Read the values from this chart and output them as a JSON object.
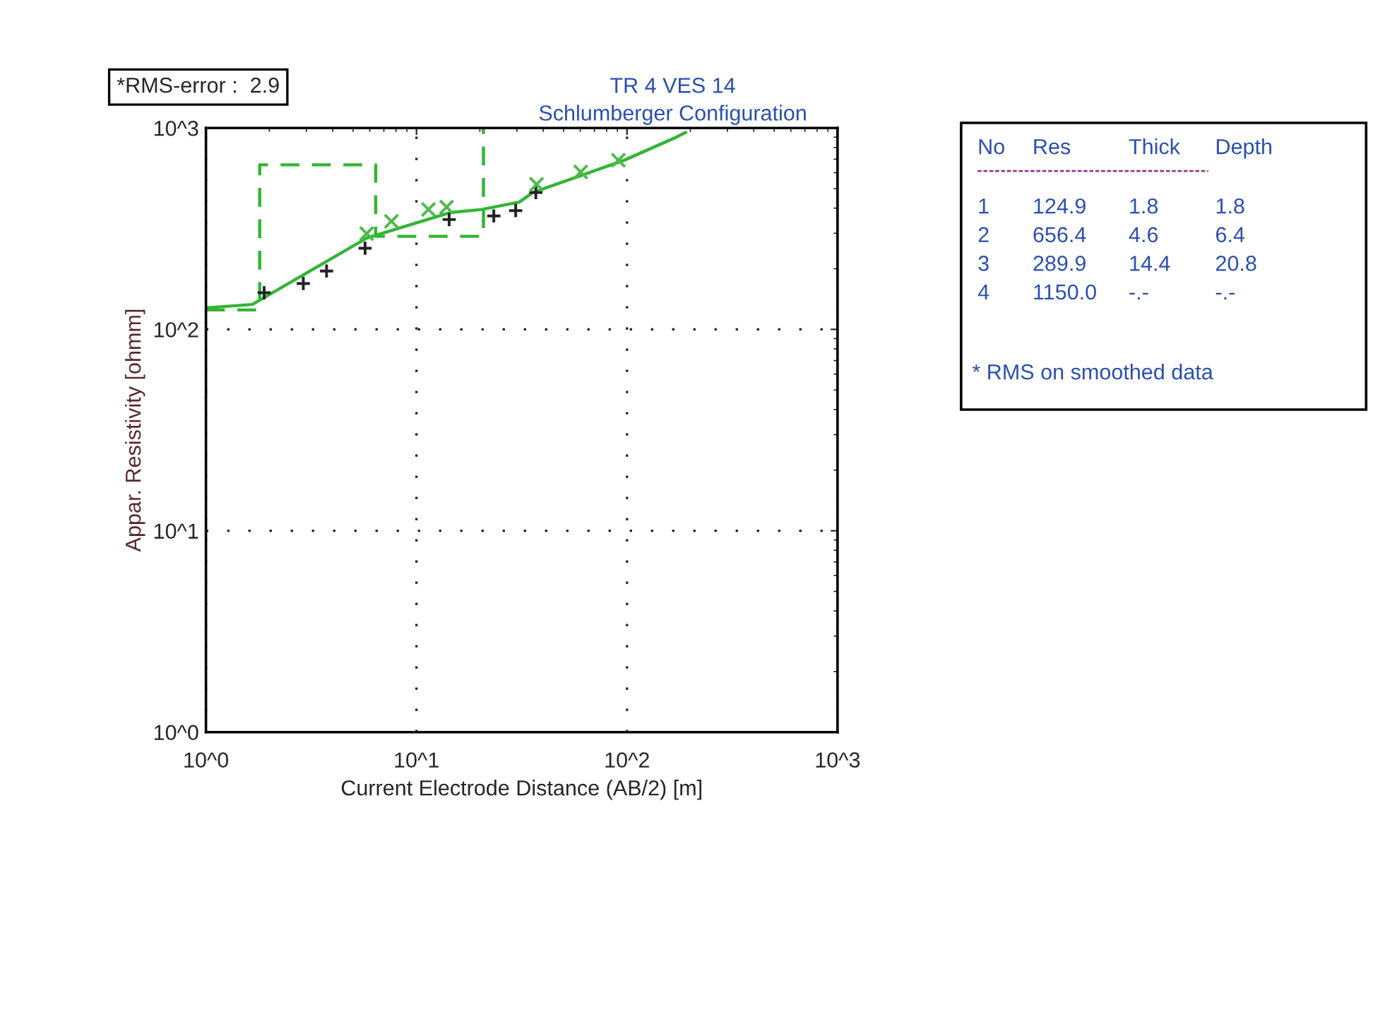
{
  "chart_data": {
    "type": "line",
    "title": "TR 4 VES 14",
    "subtitle": "Schlumberger Configuration",
    "xlabel": "Current Electrode Distance (AB/2) [m]",
    "ylabel": "Appar. Resistivity [ohmm]",
    "log": "xy",
    "xlim": [
      1,
      1000
    ],
    "ylim": [
      1,
      1000
    ],
    "xticks": [
      {
        "value": 1,
        "label": "10^0"
      },
      {
        "value": 10,
        "label": "10^1"
      },
      {
        "value": 100,
        "label": "10^2"
      },
      {
        "value": 1000,
        "label": "10^3"
      }
    ],
    "yticks": [
      {
        "value": 1,
        "label": "10^0"
      },
      {
        "value": 10,
        "label": "10^1"
      },
      {
        "value": 100,
        "label": "10^2"
      },
      {
        "value": 1000,
        "label": "10^3"
      }
    ],
    "grid": true,
    "series": [
      {
        "color": "#33b533",
        "line_style": "solid",
        "marker": "none",
        "x": [
          1,
          1.66,
          5.8,
          14.4,
          20.4,
          30.8,
          35.7,
          97,
          169,
          190
        ],
        "values": [
          128,
          133,
          284,
          380,
          394,
          429,
          478,
          692,
          894,
          950
        ]
      },
      {
        "type": "step",
        "color": "#33b533",
        "line_style": "dashed",
        "marker": "none",
        "x": [
          1,
          1.8,
          1.8,
          6.4,
          6.4,
          20.8,
          20.8
        ],
        "values": [
          124.9,
          124.9,
          656.4,
          656.4,
          289.9,
          289.9,
          1000
        ]
      },
      {
        "type": "scatter",
        "color": "#222222",
        "marker": "plus",
        "x": [
          1.89,
          2.9,
          3.74,
          5.7,
          14.3,
          23.3,
          29.6,
          36.9
        ],
        "values": [
          152,
          169,
          195,
          253,
          351,
          366,
          389,
          478
        ]
      },
      {
        "type": "scatter",
        "color": "#4cba4c",
        "marker": "cross",
        "x": [
          5.8,
          7.6,
          11.4,
          13.9,
          37.2,
          60.3,
          91
        ],
        "values": [
          299,
          344,
          394,
          405,
          525,
          605,
          692
        ]
      }
    ],
    "annotations": [
      "*RMS-error :  2.9",
      "No Res Thick Depth",
      "1 124.9 1.8 1.8",
      "2 656.4 4.6 6.4",
      "3 289.9 14.4 20.8",
      "4 1150.0 -.- -.-",
      "* RMS on smoothed data"
    ]
  }
}
